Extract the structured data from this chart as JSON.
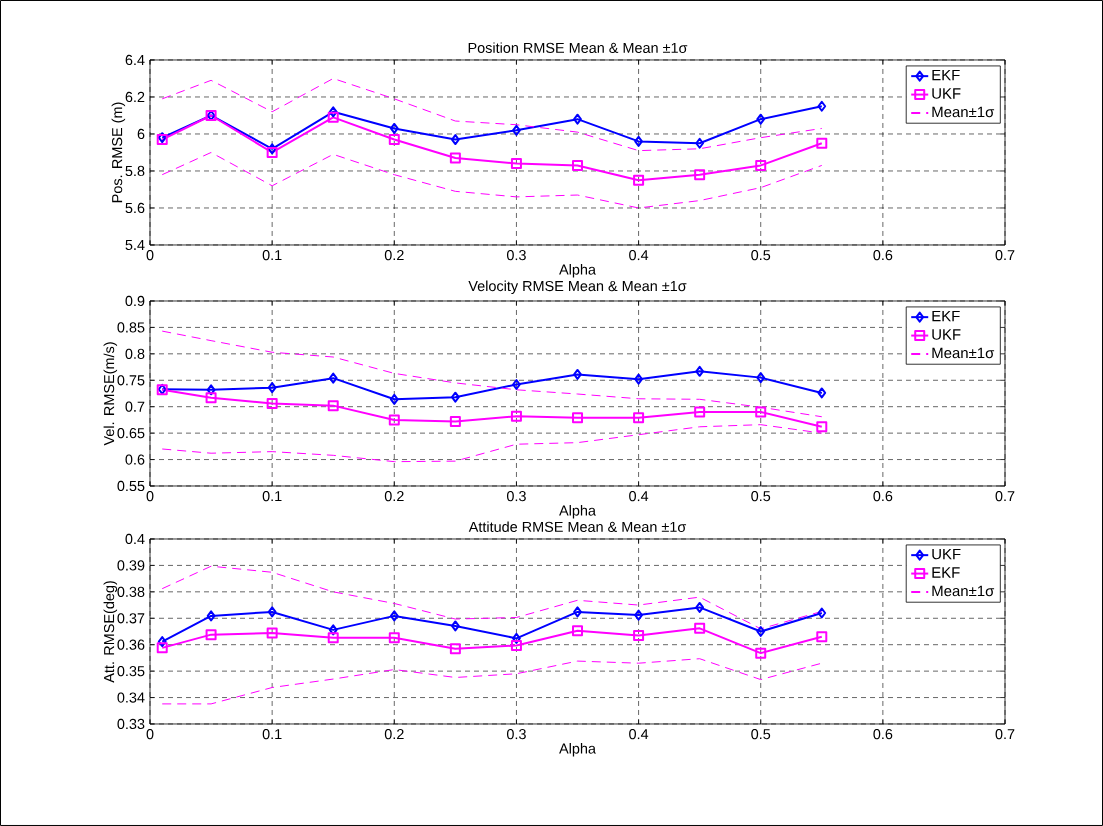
{
  "chart_data": [
    {
      "type": "line",
      "title": "Position RMSE Mean & Mean ±1σ",
      "xlabel": "Alpha",
      "ylabel": "Pos. RMSE (m)",
      "x": [
        0.01,
        0.05,
        0.1,
        0.15,
        0.2,
        0.25,
        0.3,
        0.35,
        0.4,
        0.45,
        0.5,
        0.55
      ],
      "series": [
        {
          "name": "EKF",
          "color": "#0000ff",
          "marker": "diamond",
          "line_style": "solid",
          "values": [
            5.98,
            6.1,
            5.92,
            6.12,
            6.03,
            5.97,
            6.02,
            6.08,
            5.96,
            5.95,
            6.08,
            6.15
          ]
        },
        {
          "name": "UKF",
          "color": "#ff00ff",
          "marker": "square",
          "line_style": "solid",
          "values": [
            5.97,
            6.1,
            5.9,
            6.09,
            5.97,
            5.87,
            5.84,
            5.83,
            5.75,
            5.78,
            5.83,
            5.95
          ]
        },
        {
          "name": "Mean±1σ",
          "color": "#ff00ff",
          "marker": "none",
          "line_style": "dashed",
          "values": [
            6.19,
            6.29,
            6.12,
            6.3,
            6.19,
            6.07,
            6.05,
            6.01,
            5.91,
            5.92,
            5.98,
            6.03
          ]
        },
        {
          "color": "#ff00ff",
          "marker": "none",
          "line_style": "dashed",
          "values": [
            5.78,
            5.9,
            5.72,
            5.89,
            5.78,
            5.69,
            5.66,
            5.67,
            5.6,
            5.64,
            5.71,
            5.83
          ]
        }
      ],
      "xlim": [
        0,
        0.7
      ],
      "xticks": [
        0,
        0.1,
        0.2,
        0.3,
        0.4,
        0.5,
        0.6,
        0.7
      ],
      "ylim": [
        5.4,
        6.4
      ],
      "yticks": [
        5.4,
        5.6,
        5.8,
        6,
        6.2,
        6.4
      ],
      "grid": true,
      "legend": "top right"
    },
    {
      "type": "line",
      "title": "Velocity RMSE Mean & Mean ±1σ",
      "xlabel": "Alpha",
      "ylabel": "Vel. RMSE(m/s)",
      "x": [
        0.01,
        0.05,
        0.1,
        0.15,
        0.2,
        0.25,
        0.3,
        0.35,
        0.4,
        0.45,
        0.5,
        0.55
      ],
      "series": [
        {
          "name": "EKF",
          "color": "#0000ff",
          "marker": "diamond",
          "line_style": "solid",
          "values": [
            0.733,
            0.732,
            0.736,
            0.754,
            0.714,
            0.718,
            0.742,
            0.761,
            0.752,
            0.767,
            0.755,
            0.726
          ]
        },
        {
          "name": "UKF",
          "color": "#ff00ff",
          "marker": "square",
          "line_style": "solid",
          "values": [
            0.732,
            0.717,
            0.706,
            0.702,
            0.675,
            0.672,
            0.682,
            0.679,
            0.679,
            0.69,
            0.69,
            0.662
          ]
        },
        {
          "name": "Mean±1σ",
          "color": "#ff00ff",
          "marker": "none",
          "line_style": "dashed",
          "values": [
            0.843,
            0.825,
            0.803,
            0.794,
            0.763,
            0.745,
            0.732,
            0.724,
            0.715,
            0.714,
            0.699,
            0.681
          ]
        },
        {
          "color": "#ff00ff",
          "marker": "none",
          "line_style": "dashed",
          "values": [
            0.62,
            0.612,
            0.615,
            0.608,
            0.596,
            0.597,
            0.629,
            0.632,
            0.647,
            0.662,
            0.666,
            0.65
          ]
        }
      ],
      "xlim": [
        0,
        0.7
      ],
      "xticks": [
        0,
        0.1,
        0.2,
        0.3,
        0.4,
        0.5,
        0.6,
        0.7
      ],
      "ylim": [
        0.55,
        0.9
      ],
      "yticks": [
        0.55,
        0.6,
        0.65,
        0.7,
        0.75,
        0.8,
        0.85,
        0.9
      ],
      "grid": true,
      "legend": "top right"
    },
    {
      "type": "line",
      "title": "Attitude RMSE Mean & Mean ±1σ",
      "xlabel": "Alpha",
      "ylabel": "Att. RMSE(deg)",
      "x": [
        0.01,
        0.05,
        0.1,
        0.15,
        0.2,
        0.25,
        0.3,
        0.35,
        0.4,
        0.45,
        0.5,
        0.55
      ],
      "series": [
        {
          "name": "UKF",
          "color": "#0000ff",
          "marker": "diamond",
          "line_style": "solid",
          "values": [
            0.3612,
            0.3709,
            0.3724,
            0.3656,
            0.3709,
            0.3671,
            0.3624,
            0.3724,
            0.3712,
            0.3741,
            0.365,
            0.372
          ]
        },
        {
          "name": "EKF",
          "color": "#ff00ff",
          "marker": "square",
          "line_style": "solid",
          "values": [
            0.3588,
            0.3638,
            0.3644,
            0.3626,
            0.3626,
            0.3585,
            0.3597,
            0.3653,
            0.3635,
            0.3662,
            0.3568,
            0.363
          ]
        },
        {
          "name": "Mean±1σ",
          "color": "#ff00ff",
          "marker": "none",
          "line_style": "dashed",
          "values": [
            0.3812,
            0.3897,
            0.3874,
            0.38,
            0.3756,
            0.3697,
            0.3703,
            0.3768,
            0.375,
            0.378,
            0.366,
            0.3726
          ]
        },
        {
          "color": "#ff00ff",
          "marker": "none",
          "line_style": "dashed",
          "values": [
            0.3376,
            0.3376,
            0.3438,
            0.347,
            0.3506,
            0.3476,
            0.349,
            0.3538,
            0.353,
            0.3547,
            0.3468,
            0.353
          ]
        }
      ],
      "xlim": [
        0,
        0.7
      ],
      "xticks": [
        0,
        0.1,
        0.2,
        0.3,
        0.4,
        0.5,
        0.6,
        0.7
      ],
      "ylim": [
        0.33,
        0.4
      ],
      "yticks": [
        0.33,
        0.34,
        0.35,
        0.36,
        0.37,
        0.38,
        0.39,
        0.4
      ],
      "grid": true,
      "legend": "top right"
    }
  ]
}
